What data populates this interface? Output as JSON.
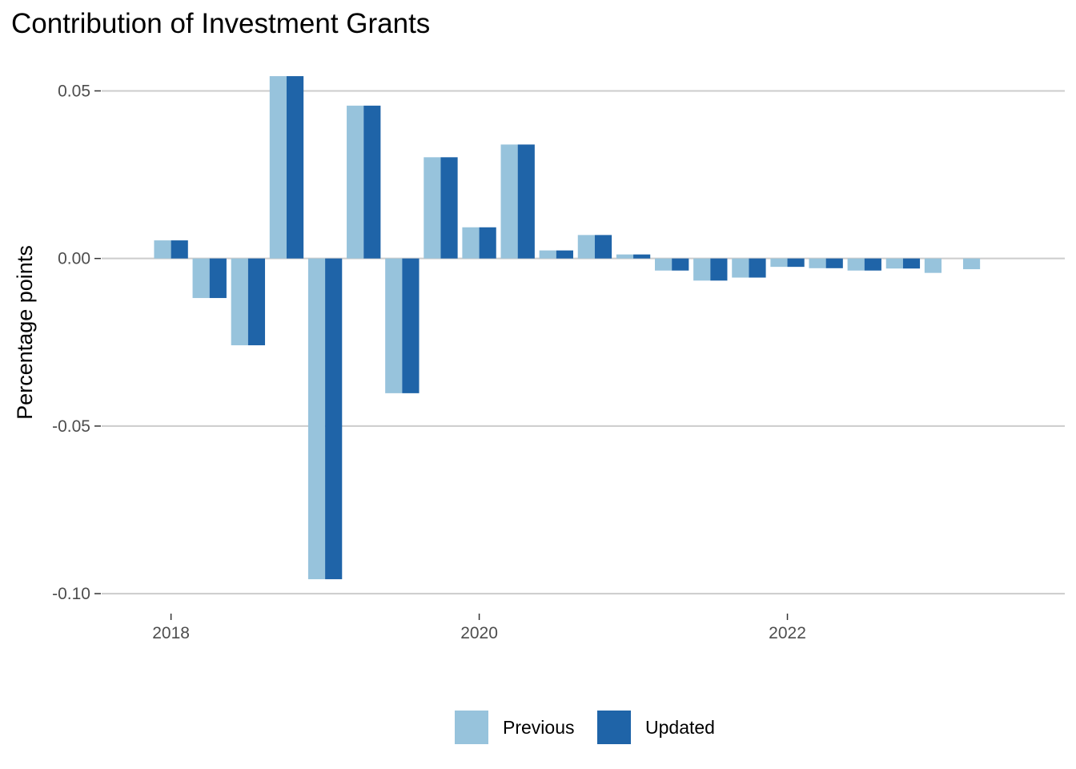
{
  "chart_data": {
    "type": "bar",
    "title": "Contribution of Investment Grants",
    "xlabel": "",
    "ylabel": "Percentage points",
    "ylim": [
      -0.105,
      0.058
    ],
    "xlim": [
      2017.55,
      2023.8
    ],
    "x_ticks": [
      2018,
      2020,
      2022
    ],
    "x_tick_labels": [
      "2018",
      "2020",
      "2022"
    ],
    "y_ticks": [
      0.05,
      0.0,
      -0.05,
      -0.1
    ],
    "y_tick_labels": [
      "0.05",
      "0.00",
      "-0.05",
      "-0.10"
    ],
    "grid": "horizontal major",
    "legend": "bottom",
    "x": [
      2018.0,
      2018.25,
      2018.5,
      2018.75,
      2019.0,
      2019.25,
      2019.5,
      2019.75,
      2020.0,
      2020.25,
      2020.5,
      2020.75,
      2021.0,
      2021.25,
      2021.5,
      2021.75,
      2022.0,
      2022.25,
      2022.5,
      2022.75,
      2023.0,
      2023.25
    ],
    "series": [
      {
        "name": "Previous",
        "color": "#97c3dc",
        "values": [
          0.0054,
          -0.0118,
          -0.0259,
          0.0544,
          -0.0957,
          0.0456,
          -0.0402,
          0.0302,
          0.0093,
          0.034,
          0.0024,
          0.007,
          0.0012,
          -0.0036,
          -0.0066,
          -0.0057,
          -0.0025,
          -0.0029,
          -0.0036,
          -0.003,
          -0.0043,
          -0.0032
        ]
      },
      {
        "name": "Updated",
        "color": "#1f64a8",
        "values": [
          0.0054,
          -0.0118,
          -0.0259,
          0.0544,
          -0.0957,
          0.0456,
          -0.0402,
          0.0302,
          0.0093,
          0.034,
          0.0024,
          0.007,
          0.0012,
          -0.0036,
          -0.0066,
          -0.0057,
          -0.0025,
          -0.0029,
          -0.0036,
          -0.003,
          null,
          null
        ]
      }
    ]
  }
}
